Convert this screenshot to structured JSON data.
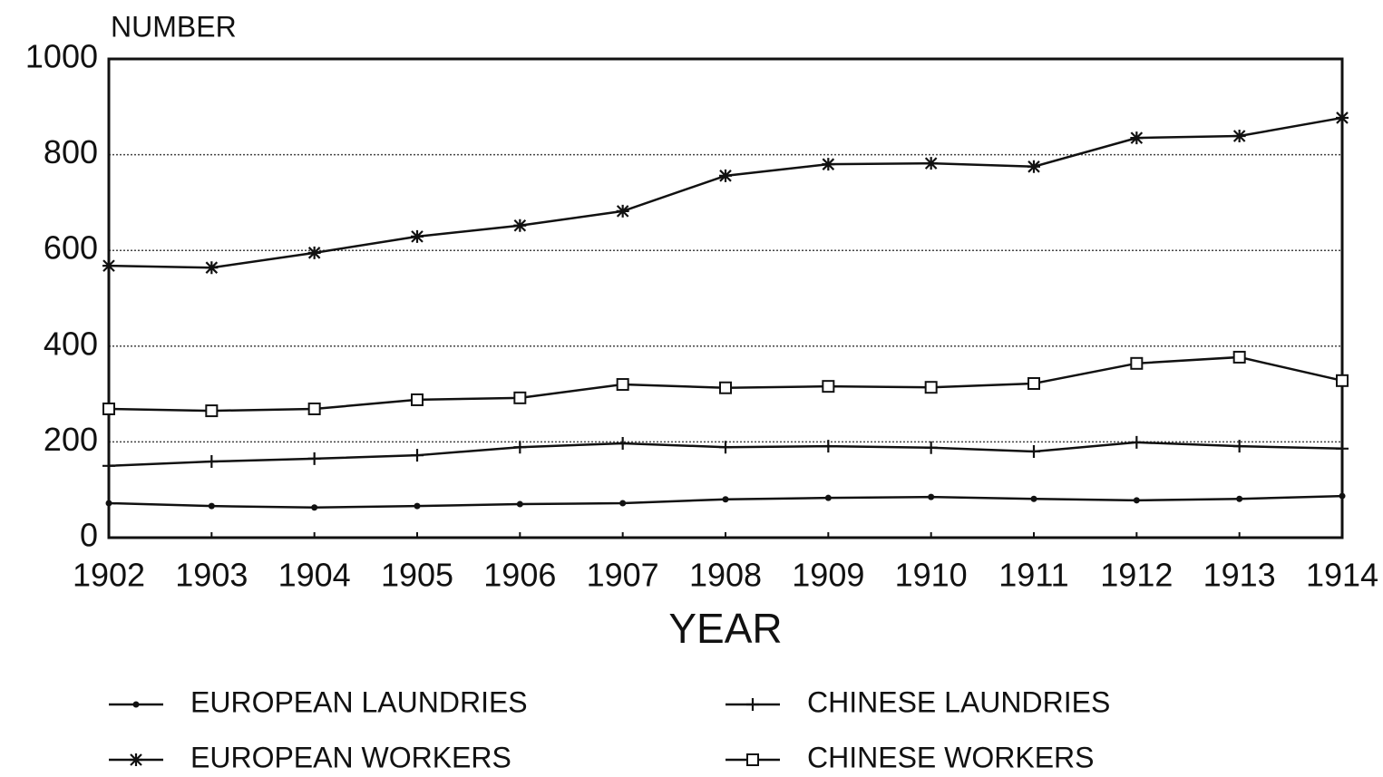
{
  "chart_data": {
    "type": "line",
    "ylabel": "NUMBER",
    "xlabel": "YEAR",
    "x": [
      1902,
      1903,
      1904,
      1905,
      1906,
      1907,
      1908,
      1909,
      1910,
      1911,
      1912,
      1913,
      1914
    ],
    "xlim": [
      1902,
      1914
    ],
    "xticks": [
      1902,
      1903,
      1904,
      1905,
      1906,
      1907,
      1908,
      1909,
      1910,
      1911,
      1912,
      1913,
      1914
    ],
    "ylim": [
      0,
      1000
    ],
    "yticks": [
      0,
      200,
      400,
      600,
      800,
      1000
    ],
    "grid": true,
    "series": [
      {
        "name": "EUROPEAN LAUNDRIES",
        "color": "#111111",
        "marker": "dot",
        "values": [
          72,
          66,
          63,
          66,
          70,
          72,
          80,
          83,
          85,
          81,
          78,
          81,
          87
        ]
      },
      {
        "name": "CHINESE LAUNDRIES",
        "color": "#111111",
        "marker": "plus",
        "values": [
          150,
          159,
          165,
          172,
          189,
          197,
          189,
          191,
          188,
          180,
          199,
          191,
          186
        ]
      },
      {
        "name": "EUROPEAN WORKERS",
        "color": "#111111",
        "marker": "star",
        "values": [
          568,
          564,
          595,
          629,
          652,
          682,
          756,
          780,
          782,
          775,
          835,
          839,
          877
        ]
      },
      {
        "name": "CHINESE WORKERS",
        "color": "#111111",
        "marker": "square",
        "values": [
          269,
          265,
          269,
          288,
          292,
          320,
          313,
          316,
          314,
          322,
          364,
          377,
          328
        ]
      }
    ]
  }
}
